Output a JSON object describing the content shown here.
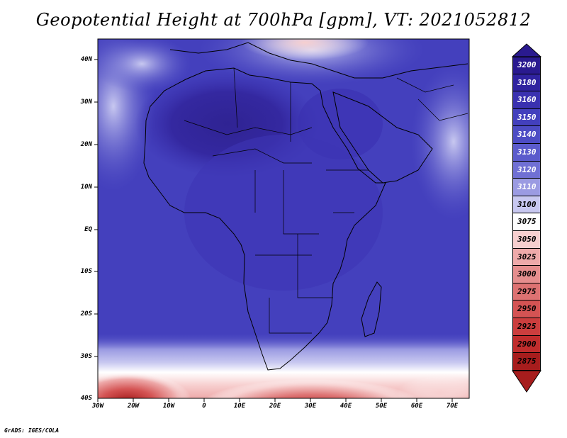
{
  "title": "Geopotential Height at 700hPa [gpm], VT: 2021052812",
  "credit": "GrADS: IGES/COLA",
  "axes": {
    "lat_labels": [
      "40N",
      "30N",
      "20N",
      "10N",
      "EQ",
      "10S",
      "20S",
      "30S",
      "40S"
    ],
    "lon_labels": [
      "30W",
      "20W",
      "10W",
      "0",
      "10E",
      "20E",
      "30E",
      "40E",
      "50E",
      "60E",
      "70E"
    ]
  },
  "colorbar": {
    "levels": [
      {
        "value": "3200",
        "color": "#2a1a8f"
      },
      {
        "value": "3180",
        "color": "#3023a0"
      },
      {
        "value": "3160",
        "color": "#3a31b0"
      },
      {
        "value": "3150",
        "color": "#4340bd"
      },
      {
        "value": "3140",
        "color": "#4d4cc4"
      },
      {
        "value": "3130",
        "color": "#5b5bcc"
      },
      {
        "value": "3120",
        "color": "#7070d4"
      },
      {
        "value": "3110",
        "color": "#9b9be2"
      },
      {
        "value": "3100",
        "color": "#c8c8f0"
      },
      {
        "value": "3075",
        "color": "#ffffff"
      },
      {
        "value": "3050",
        "color": "#f7cfcf"
      },
      {
        "value": "3025",
        "color": "#eeaaaa"
      },
      {
        "value": "3000",
        "color": "#e58e8e"
      },
      {
        "value": "2975",
        "color": "#dd7272"
      },
      {
        "value": "2950",
        "color": "#d45353"
      },
      {
        "value": "2925",
        "color": "#cc3e3e"
      },
      {
        "value": "2900",
        "color": "#c02d2d"
      },
      {
        "value": "2875",
        "color": "#a71d1d"
      }
    ]
  }
}
